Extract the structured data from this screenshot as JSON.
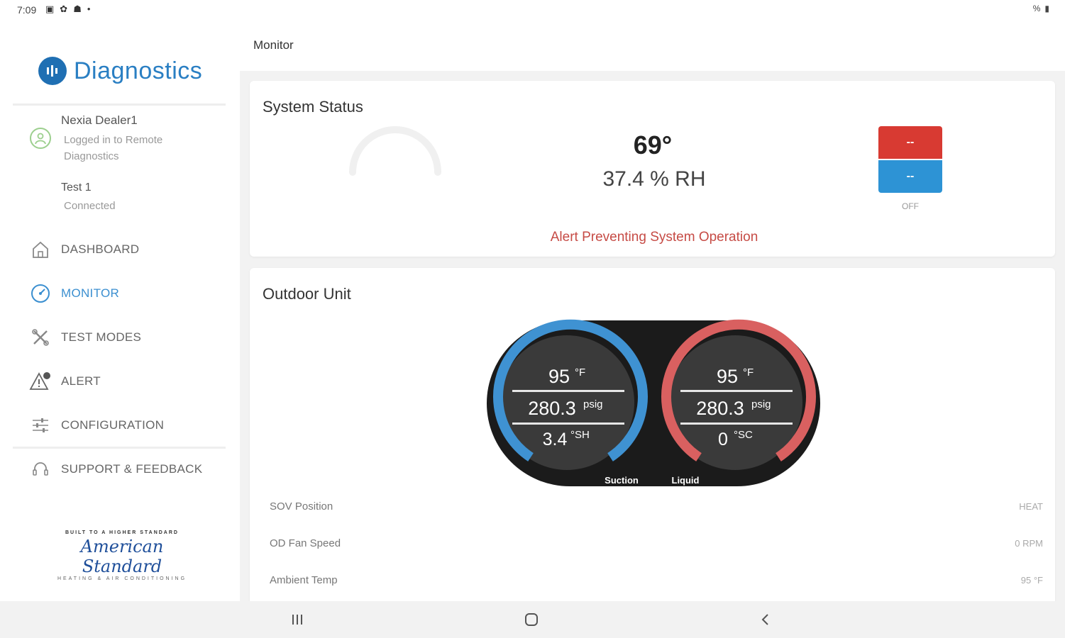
{
  "status_bar": {
    "time": "7:09",
    "right": "%"
  },
  "sidebar": {
    "app_title": "Diagnostics",
    "user": {
      "name": "Nexia Dealer1",
      "status": "Logged in to Remote Diagnostics"
    },
    "device": {
      "name": "Test 1",
      "status": "Connected"
    },
    "nav": [
      {
        "label": "DASHBOARD",
        "icon": "home-icon"
      },
      {
        "label": "MONITOR",
        "icon": "gauge-icon",
        "active": true
      },
      {
        "label": "TEST MODES",
        "icon": "tools-icon"
      },
      {
        "label": "ALERT",
        "icon": "alert-icon"
      },
      {
        "label": "CONFIGURATION",
        "icon": "sliders-icon"
      },
      {
        "label": "SUPPORT & FEEDBACK",
        "icon": "headset-icon"
      }
    ],
    "brand_logo": {
      "tagline": "BUILT TO A HIGHER STANDARD",
      "name": "American Standard",
      "subline": "HEATING & AIR CONDITIONING"
    }
  },
  "header": {
    "title": "Monitor"
  },
  "system_status": {
    "title": "System Status",
    "temperature": "69°",
    "humidity": "37.4 % RH",
    "alert": "Alert Preventing System Operation",
    "mode": {
      "heat_setpoint": "--",
      "cool_setpoint": "--",
      "state": "OFF"
    }
  },
  "outdoor_unit": {
    "title": "Outdoor Unit",
    "suction": {
      "temp": "95",
      "temp_unit": "°F",
      "pressure": "280.3",
      "pressure_unit": "psig",
      "extra": "3.4",
      "extra_unit": "°SH",
      "label": "Suction"
    },
    "liquid": {
      "temp": "95",
      "temp_unit": "°F",
      "pressure": "280.3",
      "pressure_unit": "psig",
      "extra": "0",
      "extra_unit": "°SC",
      "label": "Liquid"
    },
    "rows": [
      {
        "label": "SOV Position",
        "value": "HEAT"
      },
      {
        "label": "OD Fan Speed",
        "value": "0 RPM"
      },
      {
        "label": "Ambient Temp",
        "value": "95 °F"
      }
    ]
  },
  "colors": {
    "accent": "#3b8fd0",
    "heat": "#d83a32",
    "cool": "#2d93d5",
    "alert": "#c64b45",
    "suction_ring": "#3f92d2",
    "liquid_ring": "#d96060"
  }
}
